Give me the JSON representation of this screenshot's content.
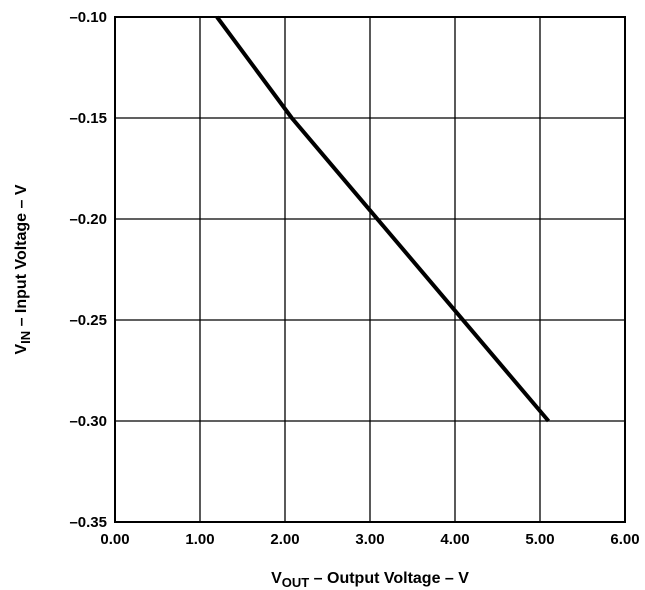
{
  "chart_data": {
    "type": "line",
    "xlabel": {
      "prefix": "V",
      "subscript": "OUT",
      "suffix": " – Output Voltage – V"
    },
    "ylabel": {
      "prefix": "V",
      "subscript": "IN",
      "suffix": " – Input Voltage – V"
    },
    "xlim": [
      0.0,
      6.0
    ],
    "ylim": [
      -0.35,
      -0.1
    ],
    "x_ticks": [
      0,
      1,
      2,
      3,
      4,
      5,
      6
    ],
    "x_tick_labels": [
      "0.00",
      "1.00",
      "2.00",
      "3.00",
      "4.00",
      "5.00",
      "6.00"
    ],
    "y_ticks": [
      -0.1,
      -0.15,
      -0.2,
      -0.25,
      -0.3,
      -0.35
    ],
    "y_tick_labels": [
      "–0.10",
      "–0.15",
      "–0.20",
      "–0.25",
      "–0.30",
      "–0.35"
    ],
    "grid": true,
    "series": [
      {
        "x": [
          1.2,
          2.08,
          5.1
        ],
        "y": [
          -0.1,
          -0.15,
          -0.3
        ],
        "color": "#000000"
      }
    ]
  }
}
